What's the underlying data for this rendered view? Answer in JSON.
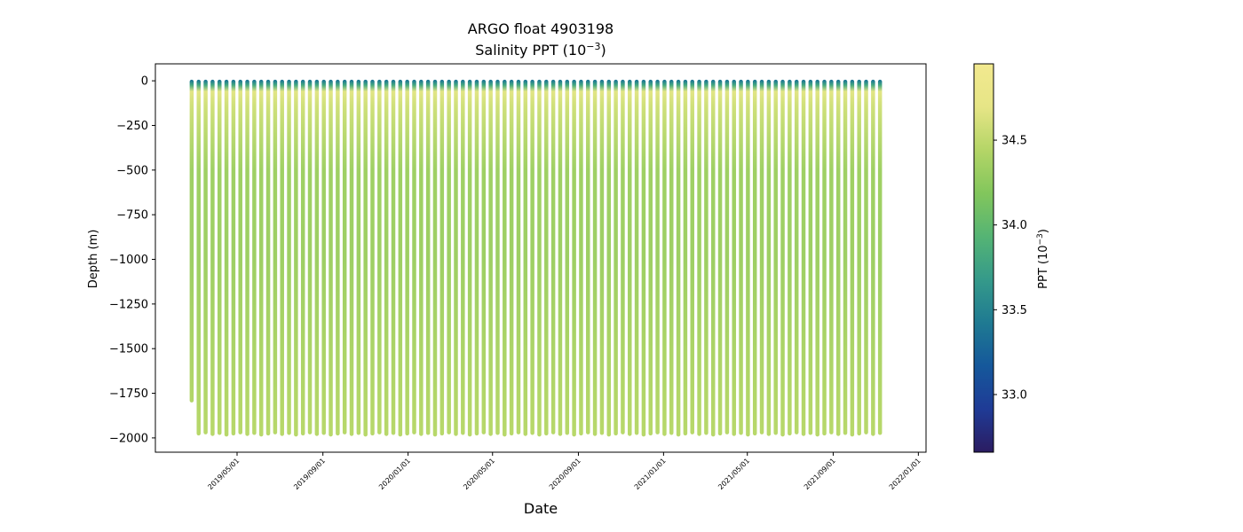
{
  "chart_data": {
    "type": "scatter",
    "title": "ARGO float 4903198",
    "subtitle_prefix": "Salinity PPT (10",
    "subtitle_exp": "−3",
    "subtitle_suffix": ")",
    "xlabel": "Date",
    "ylabel": "Depth (m)",
    "ylim": [
      -2080,
      95
    ],
    "xlim": [
      "2019-01-04",
      "2022-01-12"
    ],
    "y_ticks": [
      0,
      -250,
      -500,
      -750,
      -1000,
      -1250,
      -1500,
      -1750,
      -2000
    ],
    "y_tick_labels": [
      "0",
      "−250",
      "−500",
      "−750",
      "−1000",
      "−1250",
      "−1500",
      "−1750",
      "−2000"
    ],
    "x_ticks": [
      "2019-05-01",
      "2019-09-01",
      "2020-01-01",
      "2020-05-01",
      "2020-09-01",
      "2021-01-01",
      "2021-05-01",
      "2021-09-01",
      "2022-01-01"
    ],
    "x_tick_labels": [
      "2019/05/01",
      "2019/09/01",
      "2020/01/01",
      "2020/05/01",
      "2020/09/01",
      "2021/01/01",
      "2021/05/01",
      "2021/09/01",
      "2022/01/01"
    ],
    "first_profile": "2019-02-25",
    "profile_interval_days": 10,
    "profile_count": 100,
    "first_profile_max_depth": -1790,
    "typical_max_depth": -1975,
    "surface_depth": -5,
    "colorbar": {
      "label_prefix": "PPT (10",
      "label_exp": "−3",
      "label_suffix": ")",
      "range": [
        32.66,
        34.95
      ],
      "ticks": [
        33.0,
        33.5,
        34.0,
        34.5
      ],
      "tick_labels": [
        "33.0",
        "33.5",
        "34.0",
        "34.5"
      ],
      "colormap": [
        "#2b1c61",
        "#1f3b96",
        "#15589b",
        "#1f7a92",
        "#359a8a",
        "#55b474",
        "#82c65c",
        "#b4d567",
        "#e6e586",
        "#f2e98f"
      ]
    }
  }
}
